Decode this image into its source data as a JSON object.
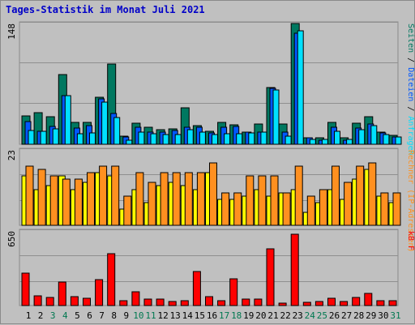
{
  "title": "Tages-Statistik im Monat Juli 2021",
  "colors": {
    "seiten": "#007860",
    "dateien": "#0058ff",
    "anfragen": "#00e0ff",
    "rechner": "#ff9020",
    "besuche": "#ffff00",
    "kb": "#ff0000",
    "weekend_label": "#007850",
    "label": "#000080"
  },
  "chart_data": [
    {
      "type": "bar",
      "panel": "requests",
      "max_label": "148",
      "ylim": [
        0,
        148
      ],
      "categories": [
        "1",
        "2",
        "3",
        "4",
        "5",
        "6",
        "7",
        "8",
        "9",
        "10",
        "11",
        "12",
        "13",
        "14",
        "15",
        "16",
        "17",
        "18",
        "19",
        "20",
        "21",
        "22",
        "23",
        "24",
        "25",
        "26",
        "27",
        "28",
        "29",
        "30",
        "31"
      ],
      "weekend_days": [
        3,
        4,
        10,
        11,
        17,
        18,
        24,
        25,
        31
      ],
      "side_label": [
        "Seiten",
        " / ",
        "Dateien",
        " / ",
        "Anfragen"
      ],
      "series": [
        {
          "name": "Seiten",
          "values": [
            35,
            39,
            34,
            85,
            27,
            27,
            58,
            98,
            10,
            26,
            21,
            18,
            19,
            45,
            23,
            16,
            27,
            24,
            15,
            25,
            70,
            25,
            148,
            8,
            8,
            27,
            8,
            26,
            34,
            15,
            11
          ]
        },
        {
          "name": "Dateien",
          "values": [
            28,
            16,
            22,
            60,
            20,
            23,
            56,
            38,
            9,
            21,
            15,
            15,
            17,
            21,
            21,
            14,
            21,
            22,
            15,
            15,
            69,
            15,
            136,
            8,
            5,
            21,
            5,
            20,
            25,
            14,
            9
          ]
        },
        {
          "name": "Anfragen",
          "values": [
            17,
            16,
            19,
            60,
            13,
            14,
            52,
            33,
            5,
            15,
            13,
            12,
            12,
            18,
            15,
            12,
            13,
            13,
            14,
            15,
            67,
            10,
            139,
            6,
            6,
            16,
            6,
            18,
            23,
            12,
            9
          ]
        }
      ]
    },
    {
      "type": "bar",
      "panel": "visits",
      "max_label": "23",
      "ylim": [
        0,
        23
      ],
      "categories": [
        "1",
        "2",
        "3",
        "4",
        "5",
        "6",
        "7",
        "8",
        "9",
        "10",
        "11",
        "12",
        "13",
        "14",
        "15",
        "16",
        "17",
        "18",
        "19",
        "20",
        "21",
        "22",
        "23",
        "24",
        "25",
        "26",
        "27",
        "28",
        "29",
        "30",
        "31"
      ],
      "side_label": [
        "Rechner (IP-Adressen)"
      ],
      "series": [
        {
          "name": "Besuche",
          "values": [
            15,
            11,
            12,
            15,
            11,
            13,
            16,
            15,
            5,
            11,
            7,
            12,
            13,
            12,
            11,
            16,
            8,
            8,
            9,
            11,
            9,
            10,
            11,
            4,
            7,
            11,
            8,
            14,
            17,
            9,
            7
          ]
        },
        {
          "name": "Rechner",
          "values": [
            18,
            17,
            15,
            14,
            14,
            16,
            18,
            18,
            9,
            16,
            13,
            16,
            16,
            16,
            16,
            19,
            10,
            10,
            15,
            15,
            15,
            10,
            18,
            9,
            11,
            18,
            13,
            18,
            19,
            10,
            10
          ]
        }
      ]
    },
    {
      "type": "bar",
      "panel": "volume",
      "max_label": "650",
      "ylim": [
        0,
        650
      ],
      "categories": [
        "1",
        "2",
        "3",
        "4",
        "5",
        "6",
        "7",
        "8",
        "9",
        "10",
        "11",
        "12",
        "13",
        "14",
        "15",
        "16",
        "17",
        "18",
        "19",
        "20",
        "21",
        "22",
        "23",
        "24",
        "25",
        "26",
        "27",
        "28",
        "29",
        "30",
        "31"
      ],
      "side_label": [
        "kB F"
      ],
      "series": [
        {
          "name": "kB F",
          "values": [
            285,
            85,
            70,
            205,
            75,
            65,
            225,
            455,
            40,
            120,
            55,
            60,
            35,
            45,
            295,
            75,
            45,
            235,
            55,
            55,
            495,
            20,
            620,
            25,
            35,
            65,
            35,
            70,
            105,
            45,
            40
          ]
        }
      ]
    }
  ]
}
